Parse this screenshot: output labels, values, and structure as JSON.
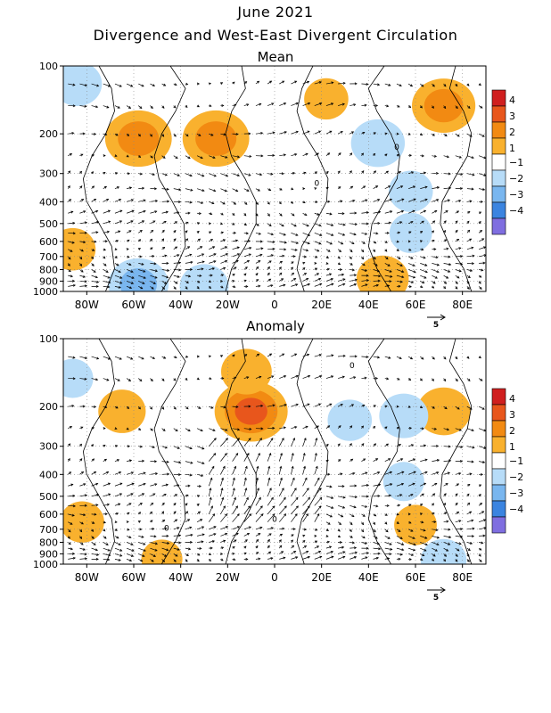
{
  "figure": {
    "title_line1": "June 2021",
    "title_line2": "Divergence and West-East Divergent Circulation"
  },
  "colors": {
    "pos1": "#f9b12e",
    "pos2": "#f28a12",
    "pos3": "#e8561c",
    "pos4": "#d01f1f",
    "neg1": "#b7dcf8",
    "neg2": "#79b6ef",
    "neg3": "#3b84e0",
    "neg4": "#7f6ee0",
    "frame": "#000000",
    "grid": "#888888"
  },
  "chart_data": [
    {
      "type": "heatmap",
      "title": "Mean",
      "x_ticks": [
        "80W",
        "60W",
        "40W",
        "20W",
        "0",
        "20E",
        "40E",
        "60E",
        "80E"
      ],
      "x_tick_values": [
        -80,
        -60,
        -40,
        -20,
        0,
        20,
        40,
        60,
        80
      ],
      "xlim": [
        -90,
        90
      ],
      "y_ticks": [
        "100",
        "200",
        "300",
        "400",
        "500",
        "600",
        "700",
        "800",
        "900",
        "1000"
      ],
      "y_tick_values": [
        100,
        200,
        300,
        400,
        500,
        600,
        700,
        800,
        900,
        1000
      ],
      "ylim": [
        1000,
        100
      ],
      "y_scale": "log",
      "colorbar": {
        "labels": [
          "4",
          "3",
          "2",
          "1",
          "−1",
          "−2",
          "−3",
          "−4"
        ]
      },
      "vector_reference": "5",
      "contour_labels": [
        {
          "text": "0",
          "lon": 52,
          "p": 235
        },
        {
          "text": "0",
          "lon": 18,
          "p": 340
        }
      ],
      "fields": [
        {
          "lon": -58,
          "p": 210,
          "value": 2.6
        },
        {
          "lon": -25,
          "p": 210,
          "value": 2.6
        },
        {
          "lon": 72,
          "p": 150,
          "value": 2.4
        },
        {
          "lon": 22,
          "p": 140,
          "value": 1.2
        },
        {
          "lon": 44,
          "p": 220,
          "value": -1.8
        },
        {
          "lon": 58,
          "p": 360,
          "value": -1.2
        },
        {
          "lon": -84,
          "p": 120,
          "value": -1.5
        },
        {
          "lon": -86,
          "p": 650,
          "value": 1.3
        },
        {
          "lon": -58,
          "p": 930,
          "value": -2.2
        },
        {
          "lon": -30,
          "p": 950,
          "value": -1.5
        },
        {
          "lon": 46,
          "p": 880,
          "value": 1.7
        },
        {
          "lon": 58,
          "p": 550,
          "value": -1.1
        }
      ]
    },
    {
      "type": "heatmap",
      "title": "Anomaly",
      "x_ticks": [
        "80W",
        "60W",
        "40W",
        "20W",
        "0",
        "20E",
        "40E",
        "60E",
        "80E"
      ],
      "x_tick_values": [
        -80,
        -60,
        -40,
        -20,
        0,
        20,
        40,
        60,
        80
      ],
      "xlim": [
        -90,
        90
      ],
      "y_ticks": [
        "100",
        "200",
        "300",
        "400",
        "500",
        "600",
        "700",
        "800",
        "900",
        "1000"
      ],
      "y_tick_values": [
        100,
        200,
        300,
        400,
        500,
        600,
        700,
        800,
        900,
        1000
      ],
      "ylim": [
        1000,
        100
      ],
      "y_scale": "log",
      "colorbar": {
        "labels": [
          "4",
          "3",
          "2",
          "1",
          "−1",
          "−2",
          "−3",
          "−4"
        ]
      },
      "vector_reference": "5",
      "contour_labels": [
        {
          "text": "0",
          "lon": 33,
          "p": 135
        },
        {
          "text": "0",
          "lon": 0,
          "p": 650
        },
        {
          "text": "0",
          "lon": -46,
          "p": 710
        }
      ],
      "fields": [
        {
          "lon": -10,
          "p": 210,
          "value": 3.0
        },
        {
          "lon": -12,
          "p": 140,
          "value": 1.6
        },
        {
          "lon": -65,
          "p": 210,
          "value": 1.4
        },
        {
          "lon": 72,
          "p": 210,
          "value": 1.8
        },
        {
          "lon": 55,
          "p": 220,
          "value": -1.5
        },
        {
          "lon": 32,
          "p": 230,
          "value": -1.2
        },
        {
          "lon": -86,
          "p": 150,
          "value": -1.0
        },
        {
          "lon": 55,
          "p": 430,
          "value": -1.0
        },
        {
          "lon": -82,
          "p": 650,
          "value": 1.2
        },
        {
          "lon": 60,
          "p": 670,
          "value": 1.1
        },
        {
          "lon": -48,
          "p": 950,
          "value": 1.0
        },
        {
          "lon": 72,
          "p": 960,
          "value": -1.3
        }
      ]
    }
  ]
}
